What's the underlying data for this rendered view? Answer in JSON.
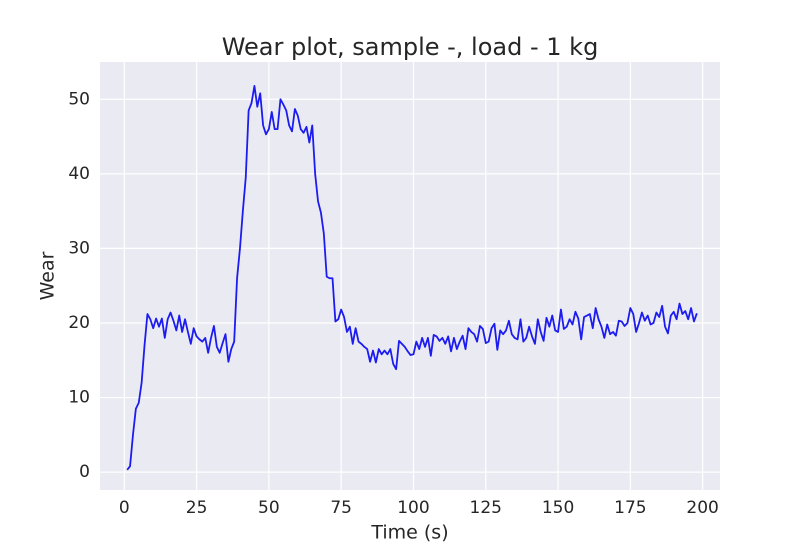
{
  "chart_data": {
    "type": "line",
    "title": "Wear plot, sample -, load - 1 kg",
    "xlabel": "Time (s)",
    "ylabel": "Wear",
    "x": [
      1,
      2,
      3,
      4,
      5,
      6,
      7,
      8,
      9,
      10,
      11,
      12,
      13,
      14,
      15,
      16,
      17,
      18,
      19,
      20,
      21,
      22,
      23,
      24,
      25,
      26,
      27,
      28,
      29,
      30,
      31,
      32,
      33,
      34,
      35,
      36,
      37,
      38,
      39,
      40,
      41,
      42,
      43,
      44,
      45,
      46,
      47,
      48,
      49,
      50,
      51,
      52,
      53,
      54,
      55,
      56,
      57,
      58,
      59,
      60,
      61,
      62,
      63,
      64,
      65,
      66,
      67,
      68,
      69,
      70,
      71,
      72,
      73,
      74,
      75,
      76,
      77,
      78,
      79,
      80,
      81,
      82,
      83,
      84,
      85,
      86,
      87,
      88,
      89,
      90,
      91,
      92,
      93,
      94,
      95,
      96,
      97,
      98,
      99,
      100,
      101,
      102,
      103,
      104,
      105,
      106,
      107,
      108,
      109,
      110,
      111,
      112,
      113,
      114,
      115,
      116,
      117,
      118,
      119,
      120,
      121,
      122,
      123,
      124,
      125,
      126,
      127,
      128,
      129,
      130,
      131,
      132,
      133,
      134,
      135,
      136,
      137,
      138,
      139,
      140,
      141,
      142,
      143,
      144,
      145,
      146,
      147,
      148,
      149,
      150,
      151,
      152,
      153,
      154,
      155,
      156,
      157,
      158,
      159,
      160,
      161,
      162,
      163,
      164,
      165,
      166,
      167,
      168,
      169,
      170,
      171,
      172,
      173,
      174,
      175,
      176,
      177,
      178,
      179,
      180,
      181,
      182,
      183,
      184,
      185,
      186,
      187,
      188,
      189,
      190,
      191,
      192,
      193,
      194,
      195,
      196,
      197,
      198
    ],
    "values": [
      0.3,
      0.8,
      5,
      8.5,
      9.3,
      12,
      17,
      21.2,
      20.5,
      19.3,
      20.6,
      19.5,
      20.6,
      18,
      20.5,
      21.4,
      20.3,
      19,
      21,
      18.8,
      20.5,
      18.8,
      17.2,
      19.3,
      18.2,
      17.8,
      17.5,
      18,
      16,
      18,
      19.6,
      16.8,
      16,
      17.3,
      18.5,
      14.8,
      16.5,
      17.5,
      26,
      30,
      35,
      39.5,
      48.5,
      49.5,
      51.8,
      49,
      50.8,
      46.5,
      45.3,
      46,
      48.3,
      46,
      46,
      50,
      49.3,
      48.5,
      46.5,
      45.7,
      48.7,
      47.8,
      46,
      45.5,
      46.3,
      44.2,
      46.5,
      40,
      36.3,
      34.8,
      32,
      26.2,
      26,
      26,
      20.2,
      20.5,
      21.8,
      20.8,
      18.8,
      19.5,
      17.2,
      19.3,
      17.5,
      17.2,
      16.8,
      16.5,
      14.8,
      16.3,
      14.7,
      16.5,
      15.8,
      16.3,
      15.8,
      16.5,
      14.5,
      13.8,
      17.6,
      17.2,
      16.8,
      16.2,
      15.7,
      15.8,
      17.5,
      16.5,
      18,
      16.8,
      18,
      15.6,
      18.4,
      18.2,
      17.6,
      18,
      17.2,
      18.2,
      16.2,
      18,
      16.5,
      17.5,
      18.3,
      16.5,
      19.3,
      18.8,
      18.5,
      17.5,
      19.6,
      19.2,
      17.3,
      17.5,
      19.3,
      19.9,
      16.4,
      19,
      18.5,
      19,
      20.3,
      18.5,
      18,
      17.8,
      20.5,
      17.5,
      18,
      19.5,
      18.2,
      17.2,
      20.5,
      18.8,
      17.6,
      20.7,
      19.5,
      21,
      19,
      18.8,
      21.8,
      19.2,
      19.5,
      20.5,
      19.8,
      21.5,
      20.6,
      17.8,
      20.8,
      21,
      21.2,
      19.3,
      22,
      20.5,
      19.5,
      18,
      19.8,
      18.5,
      18.8,
      18.3,
      20.3,
      20.2,
      19.6,
      20,
      22,
      21.2,
      18.8,
      20,
      21.4,
      20.3,
      21,
      19.8,
      20,
      21.4,
      20.8,
      22.3,
      19.5,
      18.6,
      21,
      21.5,
      20.5,
      22.6,
      21.2,
      21.6,
      20.5,
      22,
      20.2,
      21.3
    ],
    "color": "#1c1cf0",
    "xlim": [
      -8.4,
      206
    ],
    "ylim": [
      -2.4,
      55
    ],
    "xticks": [
      0,
      25,
      50,
      75,
      100,
      125,
      150,
      175,
      200
    ],
    "yticks": [
      0,
      10,
      20,
      30,
      40,
      50
    ],
    "grid": true
  }
}
